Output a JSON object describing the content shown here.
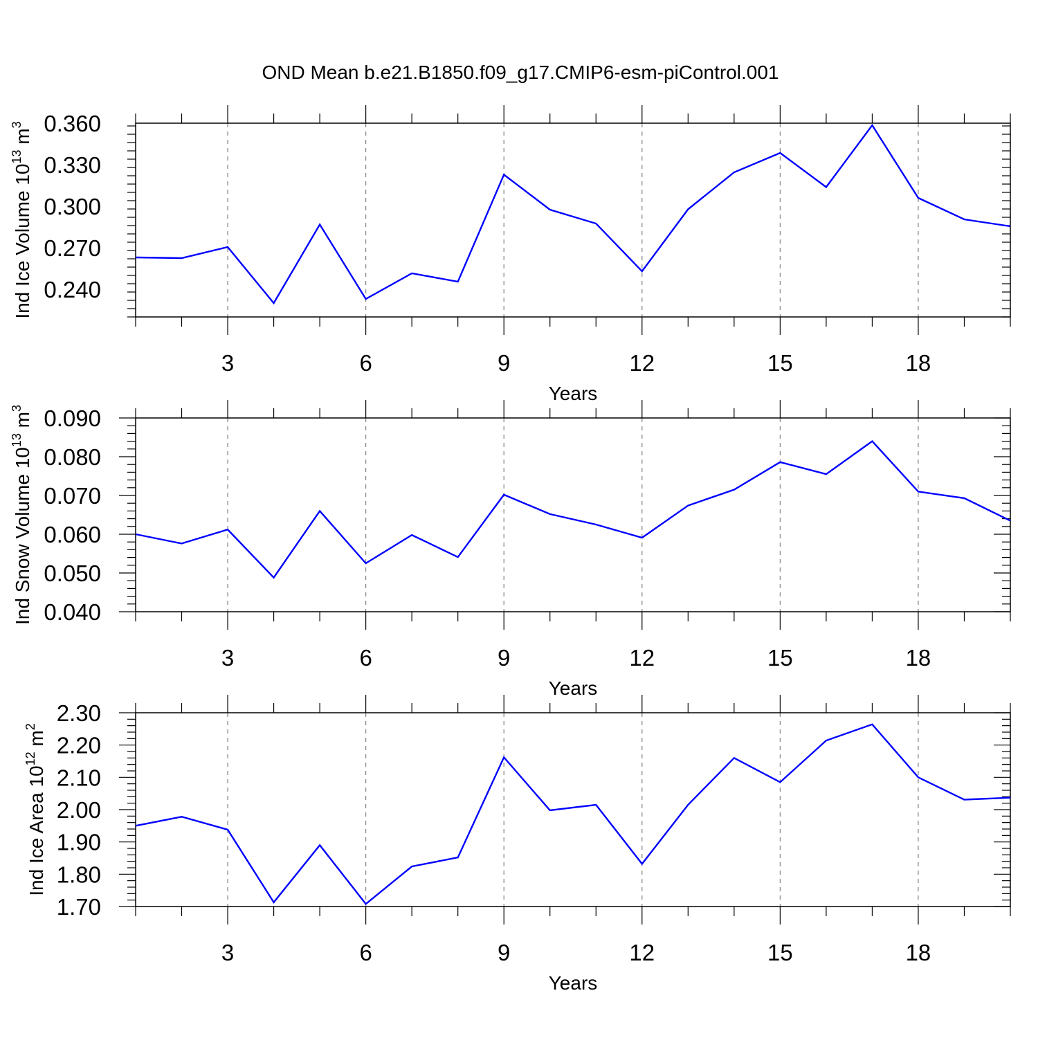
{
  "title": "OND Mean b.e21.B1850.f09_g17.CMIP6-esm-piControl.001",
  "colors": {
    "line": "#0000ff",
    "axis": "#000000",
    "grid": "#808080"
  },
  "chart_data": [
    {
      "type": "line",
      "xlabel": "Years",
      "ylabel": {
        "text": "Ind Ice Volume 10",
        "exp": "13",
        "unit": " m",
        "unit_exp": "3"
      },
      "xlim": [
        1,
        20
      ],
      "ylim": [
        0.22,
        0.36
      ],
      "xticks": [
        3,
        6,
        9,
        12,
        15,
        18
      ],
      "xtick_labels": [
        "3",
        "6",
        "9",
        "12",
        "15",
        "18"
      ],
      "yticks": [
        0.24,
        0.27,
        0.3,
        0.33,
        0.36
      ],
      "ytick_labels": [
        "0.240",
        "0.270",
        "0.300",
        "0.330",
        "0.360"
      ],
      "ymajor": 0.03,
      "yminor_count": 5,
      "x": [
        1,
        2,
        3,
        4,
        5,
        6,
        7,
        8,
        9,
        10,
        11,
        12,
        13,
        14,
        15,
        16,
        17,
        18,
        19,
        20
      ],
      "series": [
        {
          "values": [
            0.263,
            0.2625,
            0.2705,
            0.23,
            0.2868,
            0.233,
            0.2515,
            0.2455,
            0.3228,
            0.2975,
            0.2875,
            0.253,
            0.2978,
            0.3245,
            0.3385,
            0.3138,
            0.3585,
            0.306,
            0.2905,
            0.2855
          ]
        }
      ],
      "grid": "vertical dashed at major x ticks"
    },
    {
      "type": "line",
      "xlabel": "Years",
      "ylabel": {
        "text": "Ind Snow Volume 10",
        "exp": "13",
        "unit": " m",
        "unit_exp": "3"
      },
      "xlim": [
        1,
        20
      ],
      "ylim": [
        0.04,
        0.09
      ],
      "xticks": [
        3,
        6,
        9,
        12,
        15,
        18
      ],
      "xtick_labels": [
        "3",
        "6",
        "9",
        "12",
        "15",
        "18"
      ],
      "yticks": [
        0.04,
        0.05,
        0.06,
        0.07,
        0.08,
        0.09
      ],
      "ytick_labels": [
        "0.040",
        "0.050",
        "0.060",
        "0.070",
        "0.080",
        "0.090"
      ],
      "ymajor": 0.01,
      "yminor_count": 5,
      "x": [
        1,
        2,
        3,
        4,
        5,
        6,
        7,
        8,
        9,
        10,
        11,
        12,
        13,
        14,
        15,
        16,
        17,
        18,
        19,
        20
      ],
      "series": [
        {
          "values": [
            0.06,
            0.0576,
            0.0612,
            0.0488,
            0.066,
            0.0525,
            0.0598,
            0.0541,
            0.0702,
            0.0652,
            0.0625,
            0.0591,
            0.0674,
            0.0715,
            0.0786,
            0.0755,
            0.084,
            0.071,
            0.0693,
            0.0635
          ]
        }
      ],
      "grid": "vertical dashed at major x ticks"
    },
    {
      "type": "line",
      "xlabel": "Years",
      "ylabel": {
        "text": "Ind Ice Area 10",
        "exp": "12",
        "unit": " m",
        "unit_exp": "2"
      },
      "xlim": [
        1,
        20
      ],
      "ylim": [
        1.7,
        2.3
      ],
      "xticks": [
        3,
        6,
        9,
        12,
        15,
        18
      ],
      "xtick_labels": [
        "3",
        "6",
        "9",
        "12",
        "15",
        "18"
      ],
      "yticks": [
        1.7,
        1.8,
        1.9,
        2.0,
        2.1,
        2.2,
        2.3
      ],
      "ytick_labels": [
        "1.70",
        "1.80",
        "1.90",
        "2.00",
        "2.10",
        "2.20",
        "2.30"
      ],
      "ymajor": 0.1,
      "yminor_count": 5,
      "x": [
        1,
        2,
        3,
        4,
        5,
        6,
        7,
        8,
        9,
        10,
        11,
        12,
        13,
        14,
        15,
        16,
        17,
        18,
        19,
        20
      ],
      "series": [
        {
          "values": [
            1.95,
            1.978,
            1.938,
            1.713,
            1.89,
            1.708,
            1.824,
            1.852,
            2.162,
            1.998,
            2.015,
            1.832,
            2.015,
            2.16,
            2.085,
            2.214,
            2.264,
            2.1,
            2.031,
            2.037
          ]
        }
      ],
      "grid": "vertical dashed at major x ticks"
    }
  ]
}
